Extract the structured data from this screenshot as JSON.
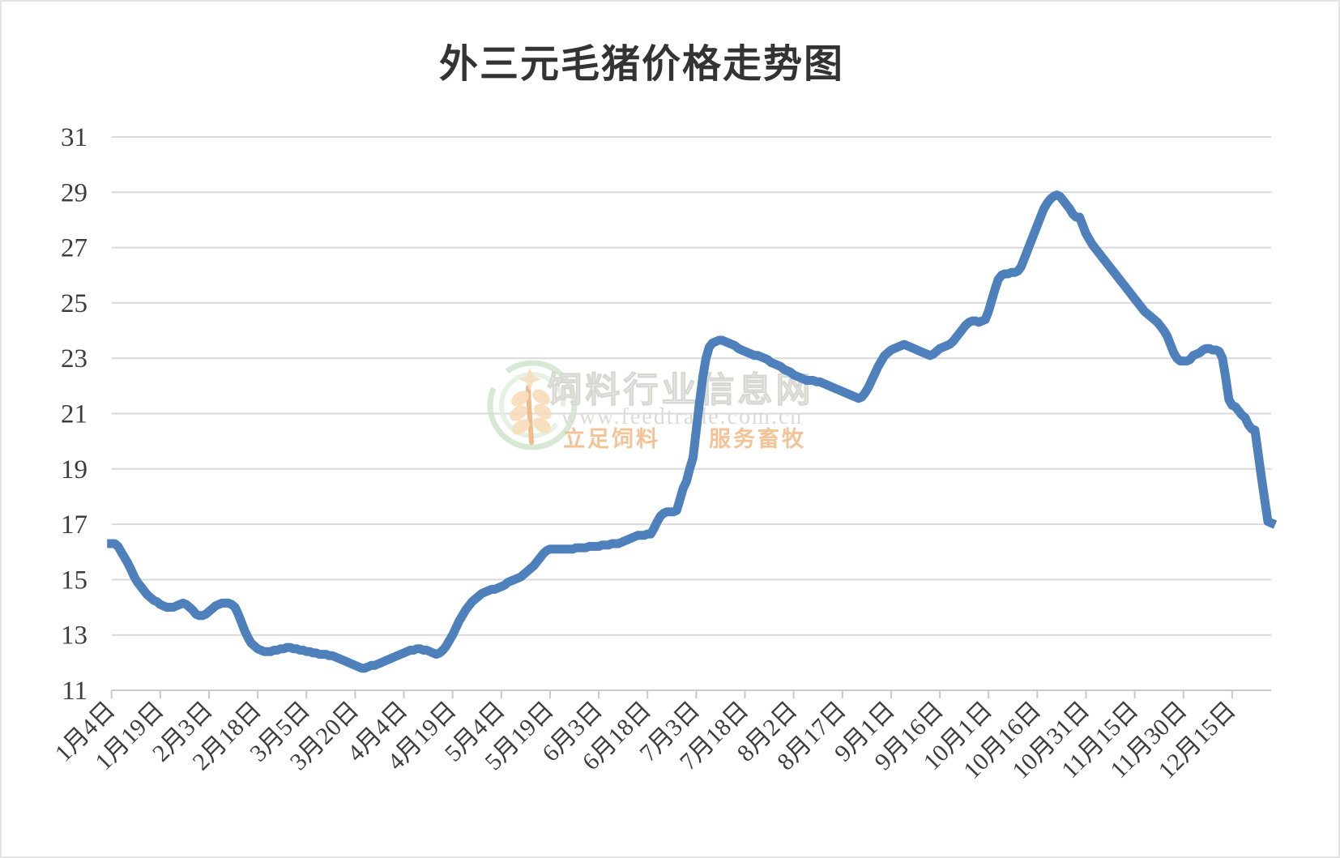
{
  "title": "外三元毛猪价格走势图",
  "watermark": {
    "site_name": "饲料行业信息网",
    "url": "www.feedtrade.com.cn",
    "slogan": "立足饲料　　服务畜牧"
  },
  "chart_data": {
    "type": "line",
    "title": "外三元毛猪价格走势图",
    "xlabel": "",
    "ylabel": "",
    "ylim": [
      11,
      31
    ],
    "y_ticks": [
      11,
      13,
      15,
      17,
      19,
      21,
      23,
      25,
      27,
      29,
      31
    ],
    "grid": true,
    "legend": false,
    "x_unit": "day",
    "label_every_n_points": 15,
    "x_tick_labels": [
      "1月4日",
      "1月19日",
      "2月3日",
      "2月18日",
      "3月5日",
      "3月20日",
      "4月4日",
      "4月19日",
      "5月4日",
      "5月19日",
      "6月3日",
      "6月18日",
      "7月3日",
      "7月18日",
      "8月2日",
      "8月17日",
      "9月1日",
      "9月16日",
      "10月1日",
      "10月16日",
      "10月31日",
      "11月15日",
      "11月30日",
      "12月15日"
    ],
    "colors": {
      "line": "#4e80bc",
      "gridline": "#d9d9d9",
      "axis": "#c9c9c9",
      "label": "#3d3d3d"
    },
    "series": [
      {
        "name": "外三元毛猪价格",
        "color": "#4e80bc",
        "values": [
          16.3,
          16.3,
          16.2,
          16.0,
          15.8,
          15.6,
          15.35,
          15.1,
          14.9,
          14.75,
          14.6,
          14.45,
          14.35,
          14.25,
          14.2,
          14.1,
          14.05,
          14.0,
          14.0,
          14.0,
          14.05,
          14.1,
          14.15,
          14.1,
          14.0,
          13.9,
          13.75,
          13.7,
          13.7,
          13.75,
          13.85,
          13.95,
          14.05,
          14.1,
          14.15,
          14.15,
          14.15,
          14.1,
          14.0,
          13.75,
          13.45,
          13.15,
          12.9,
          12.7,
          12.6,
          12.5,
          12.45,
          12.4,
          12.4,
          12.4,
          12.45,
          12.45,
          12.5,
          12.5,
          12.55,
          12.55,
          12.5,
          12.5,
          12.45,
          12.45,
          12.4,
          12.4,
          12.35,
          12.35,
          12.3,
          12.3,
          12.3,
          12.25,
          12.25,
          12.2,
          12.15,
          12.1,
          12.05,
          12.0,
          11.95,
          11.9,
          11.85,
          11.8,
          11.8,
          11.85,
          11.9,
          11.9,
          11.95,
          12.0,
          12.05,
          12.1,
          12.15,
          12.2,
          12.25,
          12.3,
          12.35,
          12.4,
          12.45,
          12.45,
          12.5,
          12.5,
          12.45,
          12.45,
          12.4,
          12.35,
          12.3,
          12.35,
          12.45,
          12.6,
          12.8,
          13.0,
          13.25,
          13.5,
          13.7,
          13.9,
          14.05,
          14.2,
          14.3,
          14.4,
          14.5,
          14.55,
          14.6,
          14.65,
          14.65,
          14.7,
          14.75,
          14.8,
          14.9,
          14.95,
          15.0,
          15.05,
          15.1,
          15.2,
          15.3,
          15.4,
          15.5,
          15.65,
          15.8,
          15.95,
          16.05,
          16.1,
          16.1,
          16.1,
          16.1,
          16.1,
          16.1,
          16.1,
          16.1,
          16.15,
          16.15,
          16.15,
          16.15,
          16.2,
          16.2,
          16.2,
          16.2,
          16.25,
          16.25,
          16.25,
          16.3,
          16.3,
          16.3,
          16.35,
          16.4,
          16.45,
          16.5,
          16.55,
          16.6,
          16.6,
          16.6,
          16.65,
          16.65,
          16.85,
          17.1,
          17.3,
          17.4,
          17.45,
          17.45,
          17.45,
          17.5,
          17.9,
          18.3,
          18.55,
          19.0,
          19.4,
          20.4,
          21.4,
          22.3,
          23.0,
          23.4,
          23.55,
          23.6,
          23.65,
          23.65,
          23.6,
          23.55,
          23.5,
          23.45,
          23.35,
          23.3,
          23.25,
          23.2,
          23.15,
          23.1,
          23.1,
          23.05,
          23.0,
          22.95,
          22.85,
          22.8,
          22.75,
          22.7,
          22.6,
          22.55,
          22.5,
          22.4,
          22.35,
          22.3,
          22.25,
          22.2,
          22.2,
          22.2,
          22.15,
          22.15,
          22.1,
          22.05,
          22.0,
          21.95,
          21.9,
          21.85,
          21.8,
          21.75,
          21.7,
          21.65,
          21.6,
          21.55,
          21.6,
          21.75,
          21.95,
          22.2,
          22.45,
          22.7,
          22.9,
          23.1,
          23.2,
          23.3,
          23.35,
          23.4,
          23.45,
          23.5,
          23.45,
          23.4,
          23.35,
          23.3,
          23.25,
          23.2,
          23.15,
          23.1,
          23.15,
          23.25,
          23.35,
          23.4,
          23.45,
          23.5,
          23.6,
          23.75,
          23.9,
          24.05,
          24.2,
          24.3,
          24.35,
          24.35,
          24.3,
          24.35,
          24.4,
          24.7,
          25.1,
          25.5,
          25.85,
          26.0,
          26.05,
          26.05,
          26.1,
          26.1,
          26.15,
          26.3,
          26.6,
          26.9,
          27.2,
          27.5,
          27.8,
          28.1,
          28.4,
          28.6,
          28.75,
          28.85,
          28.9,
          28.85,
          28.7,
          28.55,
          28.4,
          28.2,
          28.1,
          28.1,
          27.8,
          27.5,
          27.3,
          27.1,
          26.95,
          26.8,
          26.65,
          26.5,
          26.35,
          26.2,
          26.05,
          25.9,
          25.75,
          25.6,
          25.45,
          25.3,
          25.15,
          25.0,
          24.85,
          24.7,
          24.6,
          24.5,
          24.4,
          24.3,
          24.15,
          24.0,
          23.8,
          23.5,
          23.2,
          23.0,
          22.9,
          22.9,
          22.9,
          22.95,
          23.1,
          23.15,
          23.2,
          23.3,
          23.35,
          23.35,
          23.3,
          23.3,
          23.25,
          23.0,
          22.3,
          21.5,
          21.3,
          21.25,
          21.1,
          20.95,
          20.85,
          20.6,
          20.45,
          20.4,
          19.56,
          18.7,
          17.9,
          17.1,
          17.05
        ]
      }
    ]
  }
}
